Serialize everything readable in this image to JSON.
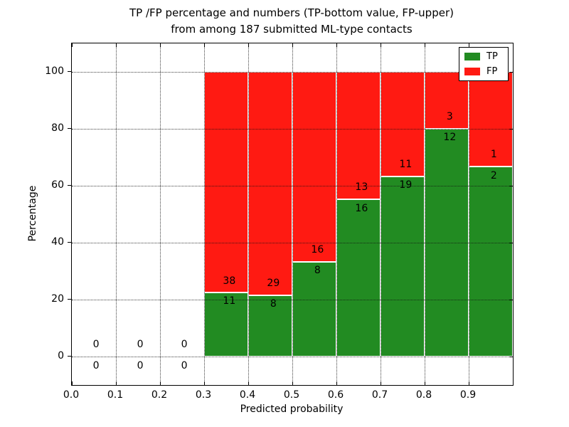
{
  "title": {
    "line1": "TP /FP percentage and numbers (TP-bottom value, FP-upper)",
    "line2": "from among 187 submitted ML-type contacts"
  },
  "axes": {
    "xlabel": "Predicted probability",
    "ylabel": "Percentage"
  },
  "legend": {
    "position": "upper-right",
    "items": [
      {
        "label": "TP",
        "color": "#228b22"
      },
      {
        "label": "FP",
        "color": "#ff1a12"
      }
    ]
  },
  "colors": {
    "tp": "#228b22",
    "fp": "#ff1a12",
    "spine": "#000000",
    "grid": "#111111",
    "background": "#ffffff"
  },
  "chart_data": {
    "type": "bar",
    "stacked": true,
    "units": "percent",
    "title": "TP /FP percentage and numbers (TP-bottom value, FP-upper) from among 187 submitted ML-type contacts",
    "xlabel": "Predicted probability",
    "ylabel": "Percentage",
    "total_contacts": 187,
    "grid": "dotted",
    "legend_position": "upper right",
    "xlim": [
      0.0,
      1.0
    ],
    "ylim": [
      -10,
      110
    ],
    "xticks": [
      "0.0",
      "0.1",
      "0.2",
      "0.3",
      "0.4",
      "0.5",
      "0.6",
      "0.7",
      "0.8",
      "0.9"
    ],
    "xtick_values": [
      0.0,
      0.1,
      0.2,
      0.3,
      0.4,
      0.5,
      0.6,
      0.7,
      0.8,
      0.9
    ],
    "yticks": [
      "0",
      "20",
      "40",
      "60",
      "80",
      "100"
    ],
    "ytick_values": [
      0,
      20,
      40,
      60,
      80,
      100
    ],
    "xgrid_values": [
      0.1,
      0.2,
      0.3,
      0.4,
      0.5,
      0.6,
      0.7,
      0.8,
      0.9
    ],
    "bin_edges": [
      0.0,
      0.1,
      0.2,
      0.3,
      0.4,
      0.5,
      0.6,
      0.7,
      0.8,
      0.9,
      1.0
    ],
    "series": [
      {
        "name": "TP",
        "color": "#228b22",
        "counts": [
          0,
          0,
          0,
          11,
          8,
          8,
          16,
          19,
          12,
          2
        ]
      },
      {
        "name": "FP",
        "color": "#ff1a12",
        "counts": [
          0,
          0,
          0,
          38,
          29,
          16,
          13,
          11,
          3,
          1
        ]
      }
    ],
    "bins": [
      {
        "x0": 0.3,
        "x1": 0.4,
        "tp": 11,
        "fp": 38,
        "tp_pct": 22.45
      },
      {
        "x0": 0.4,
        "x1": 0.5,
        "tp": 8,
        "fp": 29,
        "tp_pct": 21.62
      },
      {
        "x0": 0.5,
        "x1": 0.6,
        "tp": 8,
        "fp": 16,
        "tp_pct": 33.33
      },
      {
        "x0": 0.6,
        "x1": 0.7,
        "tp": 16,
        "fp": 13,
        "tp_pct": 55.17
      },
      {
        "x0": 0.7,
        "x1": 0.8,
        "tp": 19,
        "fp": 11,
        "tp_pct": 63.33
      },
      {
        "x0": 0.8,
        "x1": 0.9,
        "tp": 12,
        "fp": 3,
        "tp_pct": 80.0
      },
      {
        "x0": 0.9,
        "x1": 1.0,
        "tp": 2,
        "fp": 1,
        "tp_pct": 66.67
      }
    ],
    "annotations": [
      {
        "x": 0.055,
        "p": 4.3,
        "text": "0"
      },
      {
        "x": 0.055,
        "p": -3.3,
        "text": "0"
      },
      {
        "x": 0.155,
        "p": 4.3,
        "text": "0"
      },
      {
        "x": 0.155,
        "p": -3.3,
        "text": "0"
      },
      {
        "x": 0.255,
        "p": 4.3,
        "text": "0"
      },
      {
        "x": 0.255,
        "p": -3.3,
        "text": "0"
      },
      {
        "x": 0.357,
        "p": 26.6,
        "text": "38"
      },
      {
        "x": 0.357,
        "p": 19.4,
        "text": "11"
      },
      {
        "x": 0.457,
        "p": 25.8,
        "text": "29"
      },
      {
        "x": 0.457,
        "p": 18.6,
        "text": "8"
      },
      {
        "x": 0.557,
        "p": 37.5,
        "text": "16"
      },
      {
        "x": 0.557,
        "p": 30.3,
        "text": "8"
      },
      {
        "x": 0.657,
        "p": 59.4,
        "text": "13"
      },
      {
        "x": 0.657,
        "p": 52.1,
        "text": "16"
      },
      {
        "x": 0.757,
        "p": 67.5,
        "text": "11"
      },
      {
        "x": 0.757,
        "p": 60.3,
        "text": "19"
      },
      {
        "x": 0.857,
        "p": 84.2,
        "text": "3"
      },
      {
        "x": 0.857,
        "p": 76.9,
        "text": "12"
      },
      {
        "x": 0.957,
        "p": 70.9,
        "text": "1"
      },
      {
        "x": 0.957,
        "p": 63.6,
        "text": "2"
      }
    ]
  }
}
